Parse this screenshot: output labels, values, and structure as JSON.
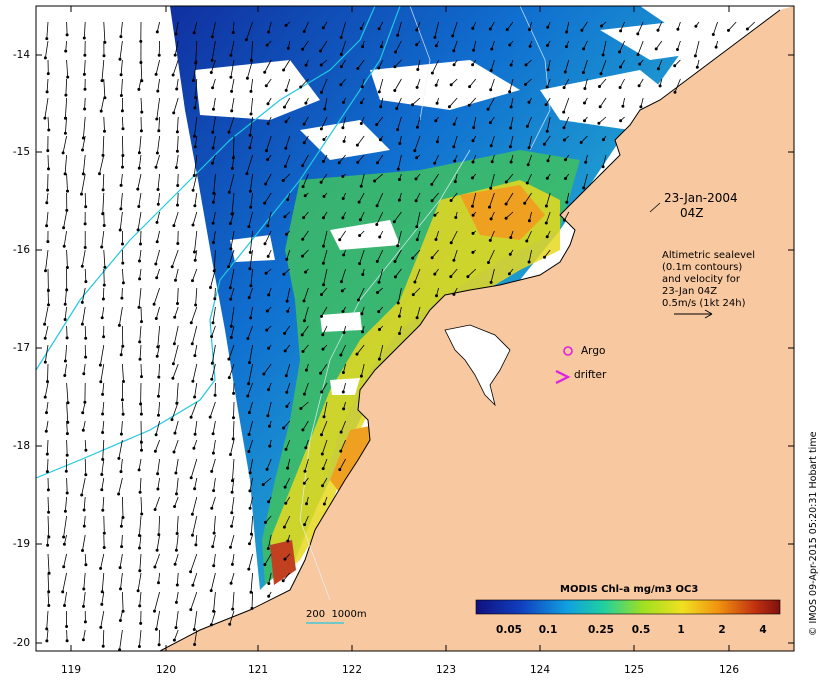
{
  "date_annotation": {
    "date": "23-Jan-2004",
    "time": "04Z"
  },
  "velocity_note": [
    "Altimetric sealevel",
    "(0.1m contours)",
    "and velocity for",
    "23-Jan 04Z",
    "0.5m/s (1kt 24h)"
  ],
  "markers": [
    {
      "label": "Argo",
      "symbol": "circle",
      "color": "#e020e0"
    },
    {
      "label": "drifter",
      "symbol": "chevron",
      "color": "#e020e0"
    }
  ],
  "axes": {
    "latitude_ticks": [
      "-14",
      "-15",
      "-16",
      "-17",
      "-18",
      "-19",
      "-20"
    ],
    "longitude_ticks": [
      "119",
      "120",
      "121",
      "122",
      "123",
      "124",
      "125",
      "126"
    ]
  },
  "colorbar": {
    "title": "MODIS Chl-a mg/m3 OC3",
    "labels": [
      "0.05",
      "0.1",
      "0.25",
      "0.5",
      "1",
      "2",
      "4"
    ]
  },
  "isobath_label": "200  1000m",
  "credit": "© IMOS 09-Apr-2015 05:20:31 Hobart time",
  "colors": {
    "land": "#f8c8a0",
    "isobath": "#20c8e0",
    "marker": "#e020e0"
  }
}
